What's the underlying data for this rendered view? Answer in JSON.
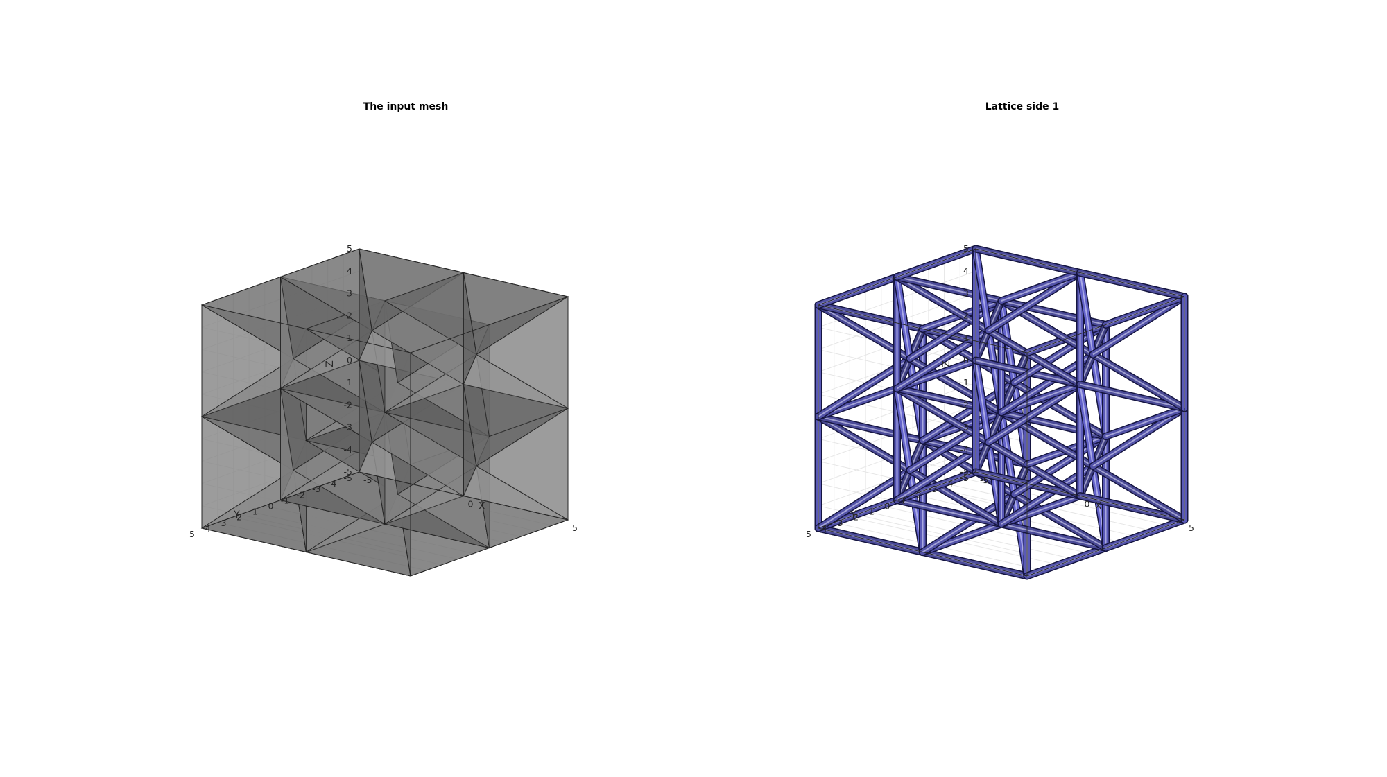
{
  "chart_data": [
    {
      "type": "3d-surface",
      "title": "The input mesh",
      "xlabel": "X",
      "ylabel": "Y",
      "zlabel": "Z",
      "xlim": [
        -5,
        5
      ],
      "ylim": [
        -5,
        5
      ],
      "zlim": [
        -5,
        5
      ],
      "x_ticks": [
        "-5",
        "0",
        "5"
      ],
      "y_ticks": [
        "-5",
        "-4",
        "-3",
        "-2",
        "-1",
        "0",
        "1",
        "2",
        "3",
        "4",
        "5"
      ],
      "z_ticks": [
        "-5",
        "-4",
        "-3",
        "-2",
        "-1",
        "0",
        "1",
        "2",
        "3",
        "4",
        "5"
      ],
      "grid": true,
      "box": true,
      "style": "solid",
      "face_color": "#9e9e9e",
      "edge_color": "#1a1a1a",
      "cells_per_axis": 2
    },
    {
      "type": "3d-surface",
      "title": "Lattice side 1",
      "xlabel": "X",
      "ylabel": "Y",
      "zlabel": "Z",
      "xlim": [
        -5,
        5
      ],
      "ylim": [
        -5,
        5
      ],
      "zlim": [
        -5,
        5
      ],
      "x_ticks": [
        "-5",
        "0",
        "5"
      ],
      "y_ticks": [
        "-5",
        "-4",
        "-3",
        "-2",
        "-1",
        "0",
        "1",
        "2",
        "3",
        "4",
        "5"
      ],
      "z_ticks": [
        "-5",
        "-4",
        "-3",
        "-2",
        "-1",
        "0",
        "1",
        "2",
        "3",
        "4",
        "5"
      ],
      "grid": true,
      "box": true,
      "style": "lattice",
      "face_color": "#6464cc",
      "edge_color": "#151540",
      "cells_per_axis": 2
    }
  ]
}
